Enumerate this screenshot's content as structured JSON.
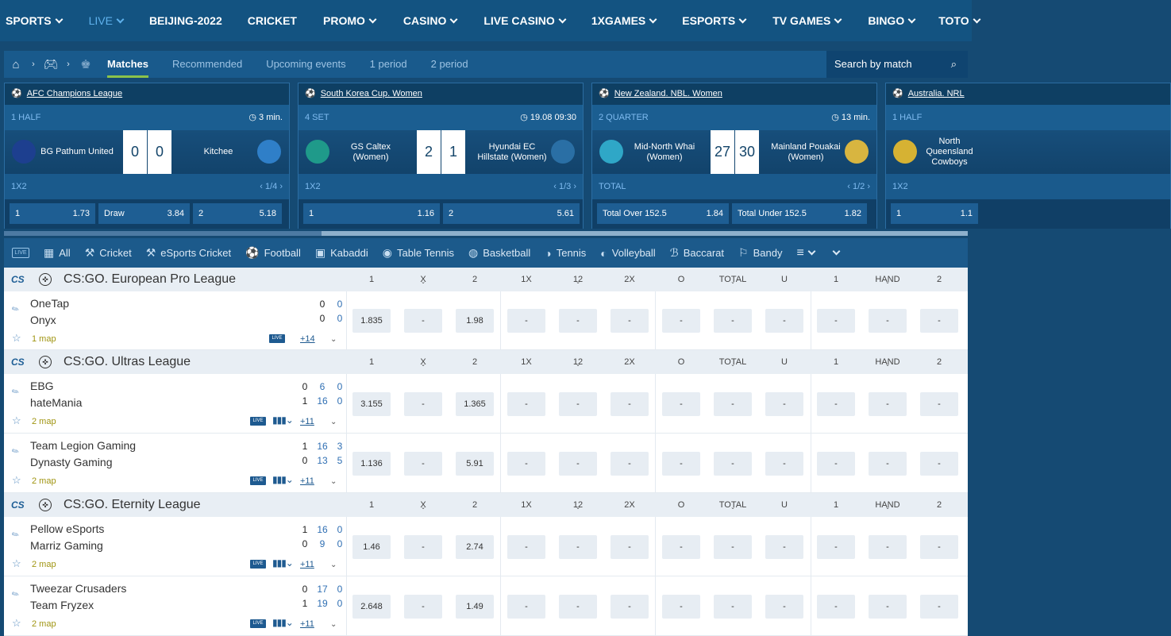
{
  "topnav": [
    {
      "label": "SPORTS",
      "chev": true,
      "active": false
    },
    {
      "label": "LIVE",
      "chev": true,
      "active": true
    },
    {
      "label": "BEIJING-2022",
      "chev": false,
      "active": false
    },
    {
      "label": "CRICKET",
      "chev": false,
      "active": false
    },
    {
      "label": "PROMO",
      "chev": true,
      "active": false
    },
    {
      "label": "CASINO",
      "chev": true,
      "active": false
    },
    {
      "label": "LIVE CASINO",
      "chev": true,
      "active": false
    },
    {
      "label": "1XGAMES",
      "chev": true,
      "active": false
    },
    {
      "label": "ESPORTS",
      "chev": true,
      "active": false
    },
    {
      "label": "TV GAMES",
      "chev": true,
      "active": false
    },
    {
      "label": "BINGO",
      "chev": true,
      "active": false
    },
    {
      "label": "TOTO",
      "chev": true,
      "active": false
    }
  ],
  "subnav": {
    "tabs": [
      "Matches",
      "Recommended",
      "Upcoming events",
      "1 period",
      "2 period"
    ],
    "search_placeholder": "Search by match"
  },
  "cards": [
    {
      "league": "AFC Champions League",
      "status": "1 HALF",
      "time": "3 min.",
      "team1": "BG Pathum United",
      "team2": "Kitchee",
      "score1": "0",
      "score2": "0",
      "market": "1X2",
      "page": "1/4",
      "odds": [
        {
          "label": "1",
          "value": "1.73"
        },
        {
          "label": "Draw",
          "value": "3.84"
        },
        {
          "label": "2",
          "value": "5.18"
        }
      ]
    },
    {
      "league": "South Korea Cup. Women",
      "status": "4 SET",
      "time": "19.08 09:30",
      "team1": "GS Caltex (Women)",
      "team2": "Hyundai EC Hillstate (Women)",
      "score1": "2",
      "score2": "1",
      "market": "1X2",
      "page": "1/3",
      "odds": [
        {
          "label": "1",
          "value": "1.16"
        },
        {
          "label": "2",
          "value": "5.61"
        }
      ]
    },
    {
      "league": "New Zealand. NBL. Women",
      "status": "2 QUARTER",
      "time": "13 min.",
      "team1": "Mid-North Whai (Women)",
      "team2": "Mainland Pouakai (Women)",
      "score1": "27",
      "score2": "30",
      "market": "TOTAL",
      "page": "1/2",
      "odds": [
        {
          "label": "Total Over 152.5",
          "value": "1.84"
        },
        {
          "label": "Total Under 152.5",
          "value": "1.82"
        }
      ]
    },
    {
      "league": "Australia. NRL",
      "status": "1 HALF",
      "time": "",
      "team1": "North Queensland Cowboys",
      "team2": "",
      "score1": "",
      "score2": "",
      "market": "1X2",
      "page": "",
      "odds": [
        {
          "label": "1",
          "value": "1.1"
        }
      ]
    }
  ],
  "sports": [
    {
      "label": "All",
      "icon": "grid-icon",
      "sym": "▦"
    },
    {
      "label": "Cricket",
      "icon": "cricket-icon",
      "sym": "⚒"
    },
    {
      "label": "eSports Cricket",
      "icon": "esports-cricket-icon",
      "sym": "⚒"
    },
    {
      "label": "Football",
      "icon": "football-icon",
      "sym": "⚽"
    },
    {
      "label": "Kabaddi",
      "icon": "kabaddi-icon",
      "sym": "▣"
    },
    {
      "label": "Table Tennis",
      "icon": "table-tennis-icon",
      "sym": "◉"
    },
    {
      "label": "Basketball",
      "icon": "basketball-icon",
      "sym": "◍"
    },
    {
      "label": "Tennis",
      "icon": "tennis-icon",
      "sym": "◑"
    },
    {
      "label": "Volleyball",
      "icon": "volleyball-icon",
      "sym": "◐"
    },
    {
      "label": "Baccarat",
      "icon": "baccarat-icon",
      "sym": "ℬ"
    },
    {
      "label": "Bandy",
      "icon": "bandy-icon",
      "sym": "⚐"
    }
  ],
  "columns": [
    "1",
    "X",
    "2",
    "1X",
    "12",
    "2X",
    "O",
    "TOTAL",
    "U",
    "1",
    "HAND",
    "2"
  ],
  "leagues": [
    {
      "name": "CS:GO. European Pro League",
      "tag": "CS",
      "matches": [
        {
          "team1": "OneTap",
          "team2": "Onyx",
          "s1": [
            "0",
            "0"
          ],
          "s2": [
            "0",
            "0"
          ],
          "map": "1 map",
          "more": "+14",
          "stats": false,
          "odds": [
            "1.835",
            "-",
            "1.98",
            "-",
            "-",
            "-",
            "-",
            "-",
            "-",
            "-",
            "-",
            "-"
          ]
        }
      ]
    },
    {
      "name": "CS:GO. Ultras League",
      "tag": "CS",
      "matches": [
        {
          "team1": "EBG",
          "team2": "hateMania",
          "s1": [
            "0",
            "6",
            "0"
          ],
          "s2": [
            "1",
            "16",
            "0"
          ],
          "map": "2 map",
          "more": "+11",
          "stats": true,
          "odds": [
            "3.155",
            "-",
            "1.365",
            "-",
            "-",
            "-",
            "-",
            "-",
            "-",
            "-",
            "-",
            "-"
          ]
        },
        {
          "team1": "Team Legion Gaming",
          "team2": "Dynasty Gaming",
          "s1": [
            "1",
            "16",
            "3"
          ],
          "s2": [
            "0",
            "13",
            "5"
          ],
          "map": "2 map",
          "more": "+11",
          "stats": true,
          "odds": [
            "1.136",
            "-",
            "5.91",
            "-",
            "-",
            "-",
            "-",
            "-",
            "-",
            "-",
            "-",
            "-"
          ]
        }
      ]
    },
    {
      "name": "CS:GO. Eternity League",
      "tag": "CS",
      "matches": [
        {
          "team1": "Pellow eSports",
          "team2": "Marriz Gaming",
          "s1": [
            "1",
            "16",
            "0"
          ],
          "s2": [
            "0",
            "9",
            "0"
          ],
          "map": "2 map",
          "more": "+11",
          "stats": true,
          "odds": [
            "1.46",
            "-",
            "2.74",
            "-",
            "-",
            "-",
            "-",
            "-",
            "-",
            "-",
            "-",
            "-"
          ]
        },
        {
          "team1": "Tweezar Crusaders",
          "team2": "Team Fryzex",
          "s1": [
            "0",
            "17",
            "0"
          ],
          "s2": [
            "1",
            "19",
            "0"
          ],
          "map": "2 map",
          "more": "+11",
          "stats": true,
          "odds": [
            "2.648",
            "-",
            "1.49",
            "-",
            "-",
            "-",
            "-",
            "-",
            "-",
            "-",
            "-",
            "-"
          ]
        }
      ]
    }
  ],
  "colors": {
    "accent": "#8bc34a",
    "nav_bg": "#135381",
    "panel": "#195a8c",
    "live_link": "#5fb1ec"
  }
}
